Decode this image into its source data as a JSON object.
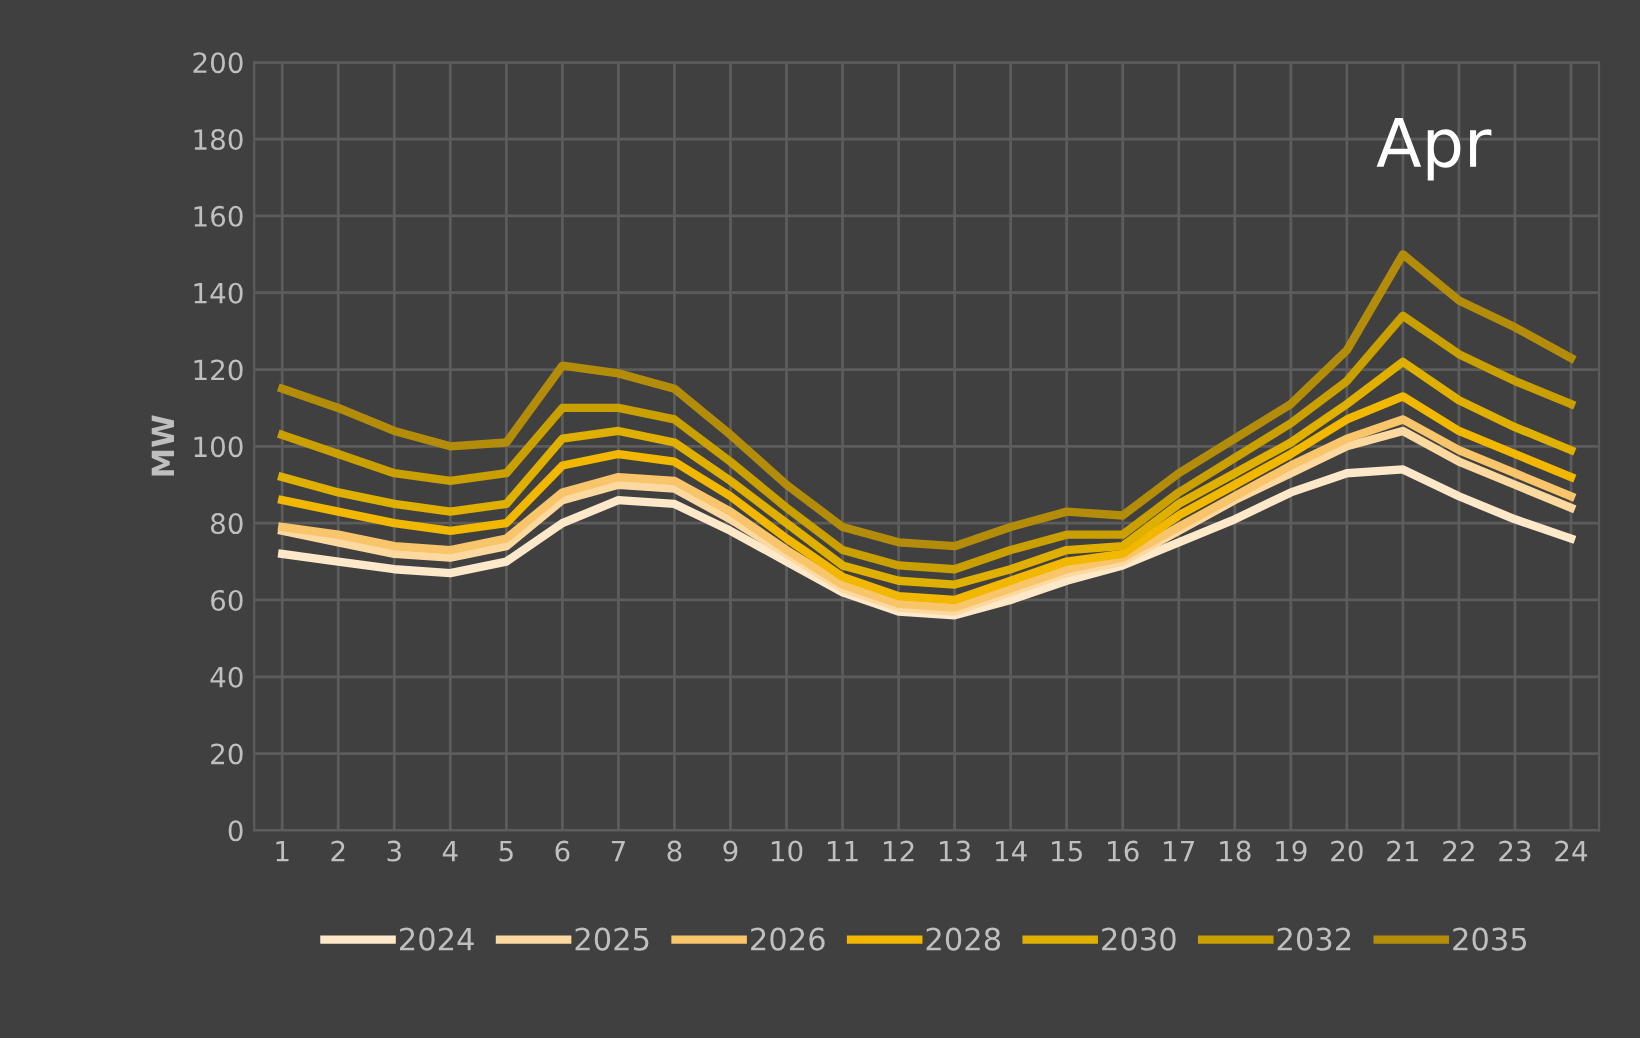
{
  "chart_data": {
    "type": "line",
    "title": "Apr",
    "ylabel": "MW",
    "categories": [
      "1",
      "2",
      "3",
      "4",
      "5",
      "6",
      "7",
      "8",
      "9",
      "10",
      "11",
      "12",
      "13",
      "14",
      "15",
      "16",
      "17",
      "18",
      "19",
      "20",
      "21",
      "22",
      "23",
      "24"
    ],
    "series": [
      {
        "name": "2024",
        "color": "#fde9c9",
        "values": [
          72,
          70,
          68,
          67,
          70,
          80,
          86,
          85,
          78,
          70,
          62,
          57,
          56,
          60,
          65,
          69,
          75,
          81,
          88,
          93,
          94,
          87,
          81,
          76
        ]
      },
      {
        "name": "2025",
        "color": "#fcd9a0",
        "values": [
          78,
          75,
          72,
          71,
          74,
          86,
          90,
          89,
          81,
          72,
          63,
          58,
          57,
          62,
          67,
          70,
          78,
          86,
          93,
          100,
          104,
          96,
          90,
          84
        ]
      },
      {
        "name": "2026",
        "color": "#f8c56a",
        "values": [
          79,
          77,
          74,
          73,
          76,
          88,
          92,
          91,
          83,
          73,
          64,
          59,
          58,
          63,
          68,
          71,
          79,
          87,
          95,
          102,
          107,
          99,
          93,
          87
        ]
      },
      {
        "name": "2028",
        "color": "#f2b800",
        "values": [
          86,
          83,
          80,
          78,
          80,
          95,
          98,
          96,
          87,
          76,
          66,
          61,
          60,
          65,
          70,
          72,
          82,
          90,
          98,
          107,
          113,
          104,
          98,
          92
        ]
      },
      {
        "name": "2030",
        "color": "#e0b000",
        "values": [
          92,
          88,
          85,
          83,
          85,
          102,
          104,
          101,
          91,
          80,
          69,
          65,
          64,
          68,
          73,
          74,
          85,
          93,
          101,
          111,
          122,
          112,
          105,
          99
        ]
      },
      {
        "name": "2032",
        "color": "#c9a000",
        "values": [
          103,
          98,
          93,
          91,
          93,
          110,
          110,
          107,
          96,
          84,
          73,
          69,
          68,
          73,
          77,
          77,
          88,
          97,
          106,
          117,
          134,
          124,
          117,
          111
        ]
      },
      {
        "name": "2035",
        "color": "#b38c0a",
        "values": [
          115,
          110,
          104,
          100,
          101,
          121,
          119,
          115,
          103,
          90,
          79,
          75,
          74,
          79,
          83,
          82,
          93,
          102,
          111,
          125,
          150,
          138,
          131,
          123
        ]
      }
    ],
    "ylim": [
      0,
      200
    ],
    "yticks": [
      0,
      20,
      40,
      60,
      80,
      100,
      120,
      140,
      160,
      180,
      200
    ],
    "grid": true,
    "legend": "bottom",
    "marker": "none",
    "line_style": "solid"
  }
}
